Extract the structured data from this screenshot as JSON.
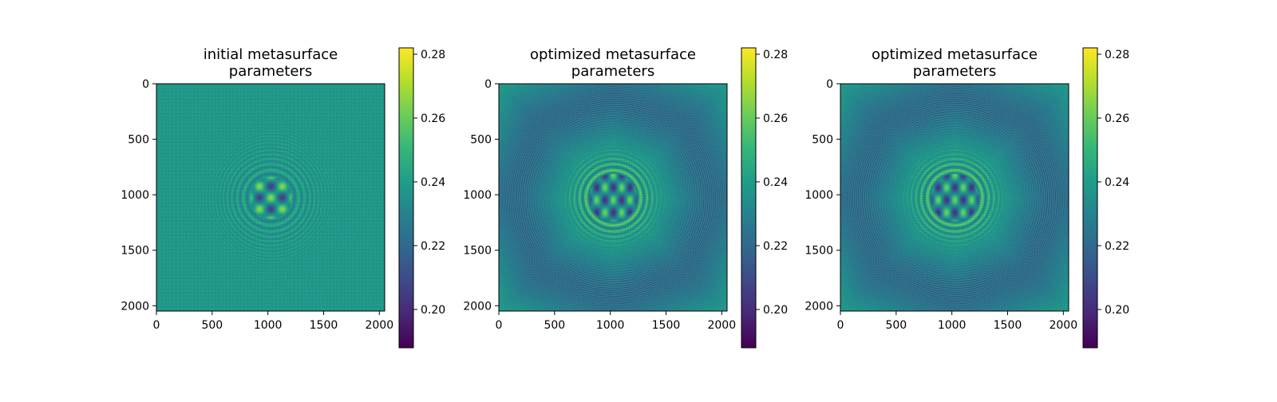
{
  "chart_data": [
    {
      "type": "heatmap",
      "title": "initial metasurface\nparameters",
      "pattern": "initial",
      "xlim": [
        0,
        2048
      ],
      "ylim": [
        2048,
        0
      ],
      "xticks": [
        0,
        500,
        1000,
        1500,
        2000
      ],
      "yticks": [
        0,
        500,
        1000,
        1500,
        2000
      ],
      "colorbar": {
        "min": 0.188,
        "max": 0.282,
        "ticks": [
          0.2,
          0.22,
          0.24,
          0.26,
          0.28
        ],
        "colormap": "viridis"
      }
    },
    {
      "type": "heatmap",
      "title": "optimized metasurface\nparameters",
      "pattern": "optimized",
      "xlim": [
        0,
        2048
      ],
      "ylim": [
        2048,
        0
      ],
      "xticks": [
        0,
        500,
        1000,
        1500,
        2000
      ],
      "yticks": [
        0,
        500,
        1000,
        1500,
        2000
      ],
      "colorbar": {
        "min": 0.188,
        "max": 0.282,
        "ticks": [
          0.2,
          0.22,
          0.24,
          0.26,
          0.28
        ],
        "colormap": "viridis"
      }
    },
    {
      "type": "heatmap",
      "title": "optimized metasurface\nparameters",
      "pattern": "optimized",
      "xlim": [
        0,
        2048
      ],
      "ylim": [
        2048,
        0
      ],
      "xticks": [
        0,
        500,
        1000,
        1500,
        2000
      ],
      "yticks": [
        0,
        500,
        1000,
        1500,
        2000
      ],
      "colorbar": {
        "min": 0.188,
        "max": 0.282,
        "ticks": [
          0.2,
          0.22,
          0.24,
          0.26,
          0.28
        ],
        "colormap": "viridis"
      }
    }
  ]
}
